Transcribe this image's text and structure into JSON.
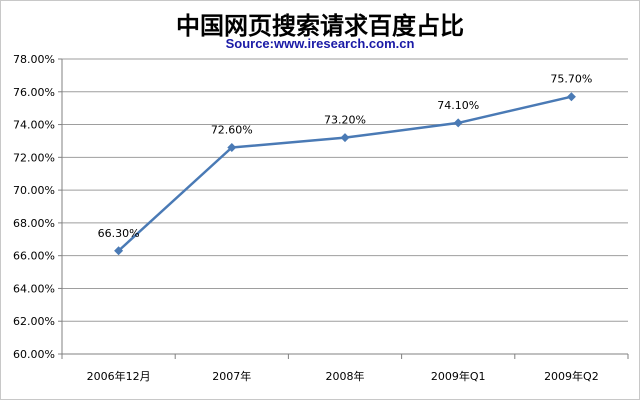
{
  "chart_data": {
    "type": "line",
    "title": "中国网页搜索请求百度占比",
    "subtitle": "Source:www.iresearch.com.cn",
    "categories": [
      "2006年12月",
      "2007年",
      "2008年",
      "2009年Q1",
      "2009年Q2"
    ],
    "values": [
      66.3,
      72.6,
      73.2,
      74.1,
      75.7
    ],
    "data_labels": [
      "66.30%",
      "72.60%",
      "73.20%",
      "74.10%",
      "75.70%"
    ],
    "y_ticks": [
      "60.00%",
      "62.00%",
      "64.00%",
      "66.00%",
      "68.00%",
      "70.00%",
      "72.00%",
      "74.00%",
      "76.00%",
      "78.00%"
    ],
    "ylim": [
      60,
      78
    ],
    "y_step": 2,
    "grid": true,
    "legend": "none",
    "colors": {
      "line": "#4a7ab5",
      "marker": "#4a7ab5",
      "grid": "#9e9e9e",
      "axis": "#808080"
    }
  }
}
